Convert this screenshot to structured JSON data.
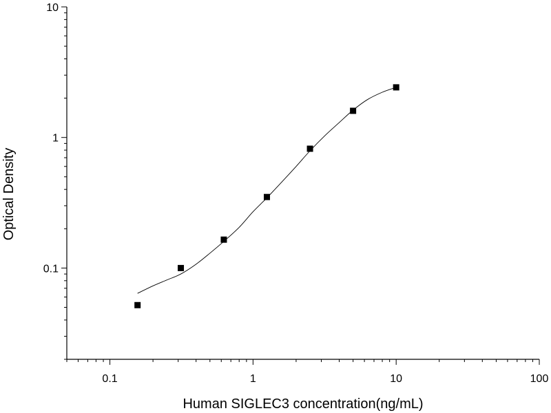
{
  "chart_data": {
    "type": "scatter",
    "title": "",
    "xlabel": "Human SIGLEC3 concentration(ng/mL)",
    "ylabel": "Optical Density",
    "xscale": "log",
    "yscale": "log",
    "xlim": [
      0.05,
      100
    ],
    "ylim": [
      0.02,
      10
    ],
    "x_ticks": [
      0.1,
      1,
      10,
      100
    ],
    "x_tick_labels": [
      "0.1",
      "1",
      "10",
      "100"
    ],
    "y_ticks": [
      0.1,
      1,
      10
    ],
    "y_tick_labels": [
      "0.1",
      "1",
      "10"
    ],
    "grid": false,
    "legend": "none",
    "series": [
      {
        "marker": "square",
        "color": "#000000",
        "x": [
          0.156,
          0.313,
          0.625,
          1.25,
          2.5,
          5,
          10
        ],
        "y": [
          0.052,
          0.1,
          0.165,
          0.35,
          0.82,
          1.6,
          2.42
        ]
      }
    ],
    "fit_curve": {
      "style": "thin-line",
      "color": "#000000",
      "x": [
        0.156,
        0.2,
        0.25,
        0.313,
        0.4,
        0.5,
        0.625,
        0.8,
        1.0,
        1.25,
        1.6,
        2.0,
        2.5,
        3.2,
        4.0,
        5.0,
        6.3,
        8.0,
        10
      ],
      "y": [
        0.064,
        0.073,
        0.081,
        0.09,
        0.107,
        0.13,
        0.16,
        0.205,
        0.27,
        0.345,
        0.46,
        0.6,
        0.79,
        1.04,
        1.3,
        1.62,
        1.95,
        2.22,
        2.42
      ]
    }
  }
}
